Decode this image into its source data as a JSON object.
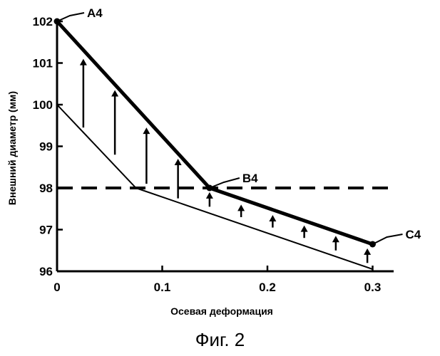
{
  "figure": {
    "caption": "Фиг. 2"
  },
  "chart_data": {
    "type": "line",
    "xlabel": "Осевая деформация",
    "ylabel": "Внешний диаметр (мм)",
    "xlim": [
      0,
      0.32
    ],
    "ylim": [
      96,
      102
    ],
    "xticks": [
      0,
      0.1,
      0.2,
      0.3
    ],
    "xtick_labels": [
      "0",
      "0.1",
      "0.2",
      "0.3"
    ],
    "yticks": [
      96,
      97,
      98,
      99,
      100,
      101,
      102
    ],
    "ytick_labels": [
      "96",
      "97",
      "98",
      "99",
      "100",
      "101",
      "102"
    ],
    "grid": false,
    "series": [
      {
        "style": "thick",
        "points": [
          [
            0,
            102.0
          ],
          [
            0.145,
            98.0
          ],
          [
            0.3,
            96.65
          ]
        ],
        "point_labels": [
          "A4",
          "B4",
          "C4"
        ]
      },
      {
        "style": "thin",
        "points": [
          [
            0,
            100.0
          ],
          [
            0.075,
            98.0
          ],
          [
            0.3,
            96.05
          ]
        ]
      },
      {
        "style": "dashed",
        "points": [
          [
            0,
            98.0
          ],
          [
            0.32,
            98.0
          ]
        ]
      }
    ],
    "arrows": [
      {
        "x": 0.025,
        "from": 99.45,
        "to": 101.1
      },
      {
        "x": 0.055,
        "from": 98.8,
        "to": 100.35
      },
      {
        "x": 0.085,
        "from": 98.1,
        "to": 99.45
      },
      {
        "x": 0.115,
        "from": 97.75,
        "to": 98.7
      },
      {
        "x": 0.145,
        "from": 97.55,
        "to": 97.9
      },
      {
        "x": 0.175,
        "from": 97.3,
        "to": 97.6
      },
      {
        "x": 0.205,
        "from": 97.05,
        "to": 97.35
      },
      {
        "x": 0.235,
        "from": 96.8,
        "to": 97.1
      },
      {
        "x": 0.265,
        "from": 96.5,
        "to": 96.85
      },
      {
        "x": 0.295,
        "from": 96.2,
        "to": 96.55
      }
    ],
    "colors": {
      "ink": "#000000",
      "background": "#ffffff"
    }
  }
}
